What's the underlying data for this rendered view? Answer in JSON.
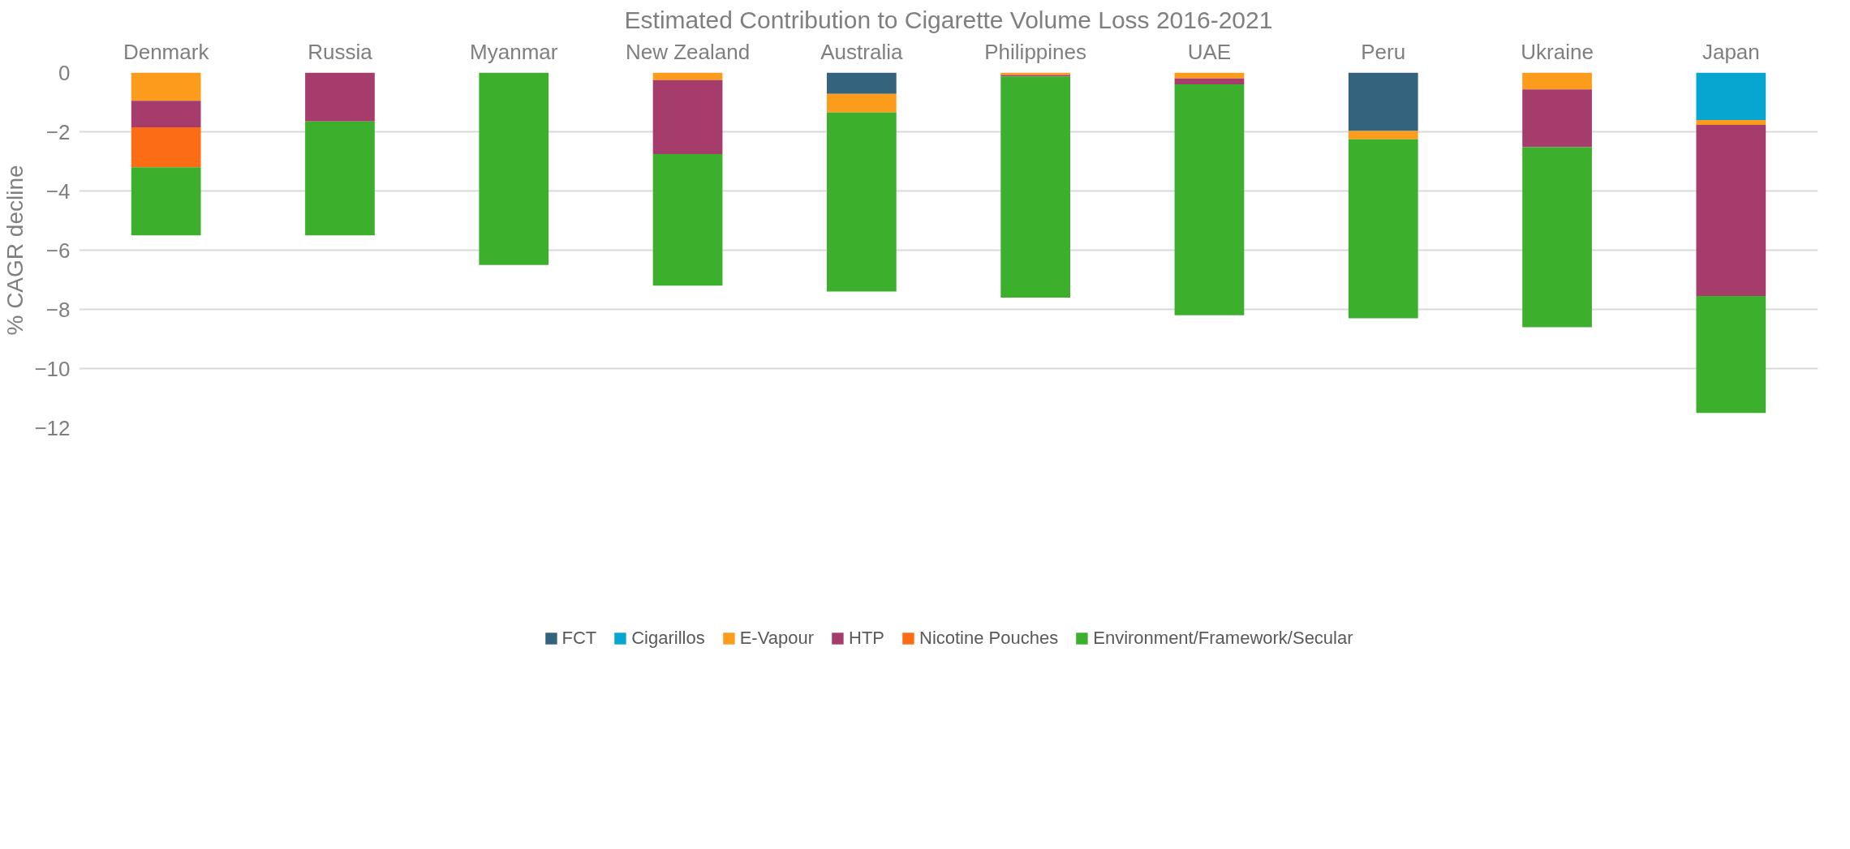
{
  "chart_data": {
    "type": "bar",
    "stacked": true,
    "title": "Estimated Contribution to Cigarette Volume Loss 2016-2021",
    "ylabel": "% CAGR decline",
    "categories": [
      "Denmark",
      "Russia",
      "Myanmar",
      "New Zealand",
      "Australia",
      "Philippines",
      "UAE",
      "Peru",
      "Ukraine",
      "Japan"
    ],
    "series": [
      {
        "name": "FCT",
        "color": "#33637d",
        "values": [
          null,
          null,
          null,
          null,
          -0.72,
          null,
          null,
          -1.97,
          null,
          null
        ]
      },
      {
        "name": "Cigarillos",
        "color": "#06a6d1",
        "values": [
          null,
          null,
          null,
          null,
          null,
          null,
          null,
          null,
          null,
          -1.6
        ]
      },
      {
        "name": "E-Vapour",
        "color": "#fc9c1c",
        "values": [
          -0.95,
          null,
          null,
          -0.25,
          -0.63,
          -0.08,
          -0.2,
          -0.28,
          -0.57,
          -0.17
        ]
      },
      {
        "name": "HTP",
        "color": "#a63c6c",
        "values": [
          -0.9,
          -1.65,
          null,
          -2.5,
          null,
          -0.05,
          -0.2,
          null,
          -1.95,
          -5.78
        ]
      },
      {
        "name": "Nicotine Pouches",
        "color": "#fc6c14",
        "values": [
          -1.35,
          null,
          null,
          null,
          null,
          null,
          null,
          null,
          null,
          null
        ]
      },
      {
        "name": "Environment/Framework/Secular",
        "color": "#3caf2c",
        "values": [
          -2.3,
          -3.85,
          -6.5,
          -4.45,
          -6.05,
          -7.47,
          -7.8,
          -6.05,
          -6.08,
          -3.95
        ]
      }
    ],
    "ylim": [
      -12,
      0
    ],
    "yticks": [
      -12,
      -10,
      -8,
      -6,
      -4,
      -2,
      0
    ],
    "grid": "y",
    "legend": "bottom"
  }
}
